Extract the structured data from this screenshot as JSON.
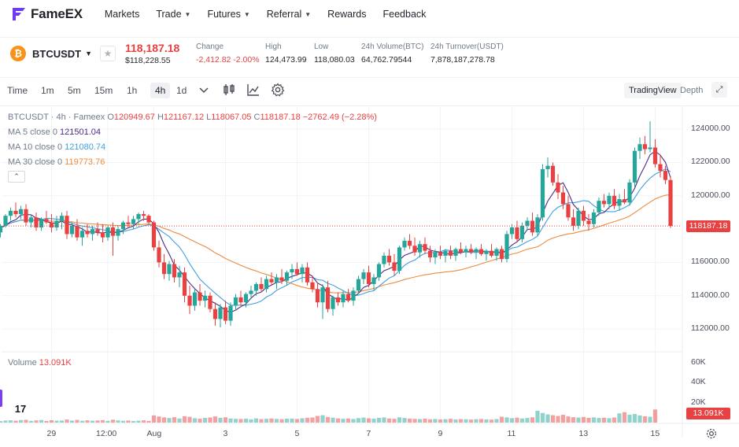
{
  "nav": {
    "brand": "FameEX",
    "items": [
      {
        "label": "Markets",
        "dropdown": false
      },
      {
        "label": "Trade",
        "dropdown": true
      },
      {
        "label": "Futures",
        "dropdown": true
      },
      {
        "label": "Referral",
        "dropdown": true
      },
      {
        "label": "Rewards",
        "dropdown": false
      },
      {
        "label": "Feedback",
        "dropdown": false
      }
    ]
  },
  "ticker": {
    "symbol": "BTCUSDT",
    "coin_glyph": "₿",
    "last_price": "118,187.18",
    "last_price_usd": "$118,228.55",
    "stats": [
      {
        "label": "Change",
        "value": "-2,412.82  -2.00%",
        "negative": true
      },
      {
        "label": "High",
        "value": "124,473.99",
        "negative": false
      },
      {
        "label": "Low",
        "value": "118,080.03",
        "negative": false
      },
      {
        "label": "24h Volume(BTC)",
        "value": "64,762.79544",
        "negative": false
      },
      {
        "label": "24h Turnover(USDT)",
        "value": "7,878,187,278.78",
        "negative": false
      }
    ]
  },
  "toolbar": {
    "timeframes": [
      "Time",
      "1m",
      "5m",
      "15m",
      "1h",
      "4h",
      "1d"
    ],
    "active_timeframe": "4h",
    "icons": [
      "chevron-down-icon",
      "candlestick-icon",
      "indicator-icon",
      "settings-icon"
    ],
    "views": [
      "TradingView",
      "Depth"
    ],
    "active_view": "TradingView"
  },
  "legend": {
    "title": "BTCUSDT · 4h · Fameex",
    "o_label": "O",
    "o": "120949.67",
    "h_label": "H",
    "h": "121167.12",
    "l_label": "L",
    "l": "118067.05",
    "c_label": "C",
    "c": "118187.18",
    "change": "−2762.49 (−2.28%)",
    "ma5_label": "MA 5 close 0",
    "ma5": "121501.04",
    "ma10_label": "MA 10 close 0",
    "ma10": "121080.74",
    "ma30_label": "MA 30 close 0",
    "ma30": "119773.76",
    "collapse_glyph": "⌃",
    "volume_label": "Volume",
    "volume": "13.091K",
    "tv_logo": "17"
  },
  "colors": {
    "up": "#26a69a",
    "down": "#e84142",
    "ma5": "#4b2a86",
    "ma10": "#3f9fe0",
    "ma30": "#ef8a3c"
  },
  "chart_data": {
    "type": "candlestick",
    "price_axis": [
      "124000.00",
      "122000.00",
      "120000.00",
      "118000.00",
      "116000.00",
      "114000.00",
      "112000.00"
    ],
    "price_ticks": [
      124000,
      122000,
      120000,
      118000,
      116000,
      114000,
      112000
    ],
    "ylim": [
      111200,
      125000
    ],
    "current_price_label": "118187.18",
    "current_price": 118187.18,
    "volume_axis": [
      "60K",
      "40K",
      "20K"
    ],
    "volume_ticks": [
      60000,
      40000,
      20000
    ],
    "volume_ylim": [
      0,
      66000
    ],
    "current_volume_label": "13.091K",
    "x_axis": [
      "29",
      "12:00",
      "Aug",
      "3",
      "5",
      "7",
      "9",
      "11",
      "13",
      "15"
    ],
    "x_axis_index": [
      13,
      24,
      33,
      47,
      61,
      75,
      89,
      103,
      117,
      131
    ],
    "candles": [
      [
        117900,
        118100,
        117600,
        118000
      ],
      [
        118000,
        118400,
        117800,
        118300
      ],
      [
        118300,
        118600,
        117700,
        117800
      ],
      [
        117800,
        118300,
        117500,
        118200
      ],
      [
        118200,
        118900,
        118100,
        118800
      ],
      [
        118800,
        119300,
        118500,
        119100
      ],
      [
        119100,
        119600,
        118700,
        118900
      ],
      [
        118900,
        119400,
        118600,
        119200
      ],
      [
        119200,
        119500,
        118200,
        118400
      ],
      [
        118400,
        118900,
        118100,
        118700
      ],
      [
        118700,
        119000,
        117900,
        118100
      ],
      [
        118100,
        118700,
        117900,
        118600
      ],
      [
        118600,
        119100,
        118300,
        118400
      ],
      [
        118400,
        118900,
        117800,
        118100
      ],
      [
        118100,
        118800,
        117900,
        118500
      ],
      [
        118500,
        119000,
        118000,
        118800
      ],
      [
        118800,
        119100,
        117400,
        117700
      ],
      [
        117700,
        118400,
        117500,
        118200
      ],
      [
        118200,
        118600,
        117300,
        117500
      ],
      [
        117500,
        118100,
        117000,
        117900
      ],
      [
        117900,
        118300,
        117500,
        117700
      ],
      [
        117700,
        118200,
        117300,
        118000
      ],
      [
        118000,
        118400,
        117600,
        117800
      ],
      [
        117800,
        118300,
        117200,
        117500
      ],
      [
        117500,
        118200,
        117300,
        118100
      ],
      [
        118100,
        118400,
        116400,
        117600
      ],
      [
        117600,
        118200,
        117300,
        118000
      ],
      [
        118000,
        118500,
        117700,
        118400
      ],
      [
        118400,
        118800,
        118100,
        118300
      ],
      [
        118300,
        118800,
        118000,
        118600
      ],
      [
        118600,
        119000,
        118300,
        118900
      ],
      [
        118900,
        119100,
        118500,
        118800
      ],
      [
        118800,
        118900,
        118300,
        118400
      ],
      [
        118400,
        118500,
        116700,
        116900
      ],
      [
        116900,
        117300,
        115700,
        116000
      ],
      [
        116000,
        116500,
        115000,
        115300
      ],
      [
        115300,
        116100,
        114900,
        115900
      ],
      [
        115900,
        116200,
        114800,
        115100
      ],
      [
        115100,
        115800,
        114500,
        115400
      ],
      [
        115400,
        115700,
        113600,
        114000
      ],
      [
        114000,
        114600,
        112900,
        113400
      ],
      [
        113400,
        114400,
        113100,
        114200
      ],
      [
        114200,
        114700,
        113400,
        113700
      ],
      [
        113700,
        114300,
        113300,
        114000
      ],
      [
        114000,
        114200,
        113000,
        113200
      ],
      [
        113200,
        113600,
        112200,
        112600
      ],
      [
        112600,
        113500,
        112100,
        113300
      ],
      [
        113300,
        113700,
        112300,
        112500
      ],
      [
        112500,
        113600,
        112200,
        113400
      ],
      [
        113400,
        114100,
        113100,
        113900
      ],
      [
        113900,
        114300,
        113400,
        113600
      ],
      [
        113600,
        114200,
        113300,
        114100
      ],
      [
        114100,
        114600,
        113800,
        114300
      ],
      [
        114300,
        114800,
        114000,
        114700
      ],
      [
        114700,
        115100,
        114200,
        114400
      ],
      [
        114400,
        115200,
        114200,
        115000
      ],
      [
        115000,
        115400,
        114600,
        114800
      ],
      [
        114800,
        115300,
        114400,
        115100
      ],
      [
        115100,
        115600,
        114700,
        114900
      ],
      [
        114900,
        115500,
        114600,
        115400
      ],
      [
        115400,
        115900,
        115000,
        115600
      ],
      [
        115600,
        116000,
        115200,
        115300
      ],
      [
        115300,
        115900,
        114800,
        115700
      ],
      [
        115700,
        116000,
        114600,
        114800
      ],
      [
        114800,
        115200,
        114200,
        114400
      ],
      [
        114400,
        114800,
        113300,
        113600
      ],
      [
        113600,
        114700,
        112600,
        114500
      ],
      [
        114500,
        114900,
        113000,
        113200
      ],
      [
        113200,
        114000,
        112800,
        113900
      ],
      [
        113900,
        114200,
        113400,
        113600
      ],
      [
        113600,
        114300,
        113300,
        114100
      ],
      [
        114100,
        114400,
        113600,
        113700
      ],
      [
        113700,
        114500,
        113400,
        114300
      ],
      [
        114300,
        115200,
        114100,
        115000
      ],
      [
        115000,
        115600,
        114700,
        115400
      ],
      [
        115400,
        115800,
        114500,
        114700
      ],
      [
        114700,
        115300,
        114300,
        115100
      ],
      [
        115100,
        116000,
        114900,
        115900
      ],
      [
        115900,
        116600,
        115700,
        116400
      ],
      [
        116400,
        116800,
        115800,
        116000
      ],
      [
        116000,
        116500,
        115200,
        115500
      ],
      [
        115500,
        117000,
        115300,
        116900
      ],
      [
        116900,
        117500,
        116700,
        117300
      ],
      [
        117300,
        117700,
        116800,
        117000
      ],
      [
        117000,
        117500,
        116400,
        116600
      ],
      [
        116600,
        117300,
        116300,
        117100
      ],
      [
        117100,
        117500,
        116500,
        116700
      ],
      [
        116700,
        117000,
        116000,
        116300
      ],
      [
        116300,
        116800,
        115900,
        116600
      ],
      [
        116600,
        117000,
        116200,
        116400
      ],
      [
        116400,
        116800,
        116000,
        116700
      ],
      [
        116700,
        117000,
        116200,
        116400
      ],
      [
        116400,
        116900,
        116100,
        116800
      ],
      [
        116800,
        117200,
        116500,
        116600
      ],
      [
        116600,
        117000,
        116300,
        116800
      ],
      [
        116800,
        117100,
        116500,
        116600
      ],
      [
        116600,
        116900,
        116200,
        116800
      ],
      [
        116800,
        117100,
        116400,
        116500
      ],
      [
        116500,
        116800,
        116100,
        116700
      ],
      [
        116700,
        117100,
        116300,
        116400
      ],
      [
        116400,
        116900,
        116100,
        116800
      ],
      [
        116800,
        117000,
        116000,
        116200
      ],
      [
        116200,
        117900,
        116000,
        117700
      ],
      [
        117700,
        118300,
        117400,
        118100
      ],
      [
        118100,
        118500,
        117200,
        117400
      ],
      [
        117400,
        118400,
        117200,
        118200
      ],
      [
        118200,
        118700,
        117900,
        118500
      ],
      [
        118500,
        119000,
        117600,
        117800
      ],
      [
        117800,
        118900,
        117600,
        118700
      ],
      [
        118700,
        121900,
        118500,
        121600
      ],
      [
        121600,
        122300,
        121100,
        121800
      ],
      [
        121800,
        122000,
        120600,
        120800
      ],
      [
        120800,
        121300,
        119800,
        120200
      ],
      [
        120200,
        120600,
        119200,
        119500
      ],
      [
        119500,
        120000,
        118500,
        118700
      ],
      [
        118700,
        119200,
        117900,
        118200
      ],
      [
        118200,
        119300,
        118000,
        119100
      ],
      [
        119100,
        119400,
        118200,
        118500
      ],
      [
        118500,
        118900,
        117900,
        118300
      ],
      [
        118300,
        119200,
        118100,
        119000
      ],
      [
        119000,
        119900,
        118800,
        119700
      ],
      [
        119700,
        120100,
        119300,
        119500
      ],
      [
        119500,
        120200,
        119200,
        120000
      ],
      [
        120000,
        120400,
        119200,
        119400
      ],
      [
        119400,
        120100,
        119100,
        119800
      ],
      [
        119800,
        120400,
        119500,
        119600
      ],
      [
        119600,
        121000,
        119400,
        120800
      ],
      [
        120800,
        122900,
        120500,
        122700
      ],
      [
        122700,
        123500,
        122200,
        123100
      ],
      [
        123100,
        123600,
        122500,
        122800
      ],
      [
        122800,
        124473,
        122600,
        122900
      ],
      [
        122900,
        123400,
        121700,
        121900
      ],
      [
        121900,
        122400,
        121100,
        121500
      ],
      [
        121500,
        121800,
        120700,
        120949.67
      ],
      [
        120949.67,
        121167.12,
        118067.05,
        118187.18
      ]
    ],
    "volumes": [
      2100,
      1800,
      2600,
      1500,
      2000,
      2300,
      1900,
      2500,
      2800,
      1700,
      2200,
      2600,
      1600,
      2400,
      1900,
      2100,
      3100,
      2000,
      2700,
      1800,
      2300,
      1900,
      2100,
      2500,
      1700,
      2900,
      2200,
      1800,
      2100,
      1600,
      1900,
      2300,
      1700,
      7200,
      6100,
      5200,
      4600,
      5400,
      4100,
      6300,
      5800,
      4400,
      3900,
      4700,
      5100,
      6200,
      4800,
      5300,
      4100,
      3800,
      3600,
      3900,
      3300,
      4200,
      3500,
      3800,
      4100,
      3700,
      3400,
      3900,
      4000,
      3600,
      4300,
      4800,
      5100,
      6600,
      7400,
      5600,
      4900,
      4200,
      3800,
      4100,
      3600,
      4500,
      5000,
      4300,
      3900,
      4700,
      5200,
      4100,
      3800,
      5300,
      4600,
      4000,
      3700,
      3500,
      3900,
      3300,
      3600,
      3200,
      3400,
      3800,
      3100,
      3500,
      3300,
      3000,
      3400,
      3600,
      3200,
      3000,
      3500,
      5900,
      5200,
      4400,
      4900,
      4100,
      4600,
      5300,
      11800,
      9600,
      8200,
      7400,
      6600,
      7800,
      6200,
      5400,
      5000,
      5600,
      4800,
      5200,
      4600,
      4900,
      4400,
      5100,
      9200,
      10400,
      7900,
      8600,
      7200,
      6300,
      5900,
      13091
    ]
  }
}
